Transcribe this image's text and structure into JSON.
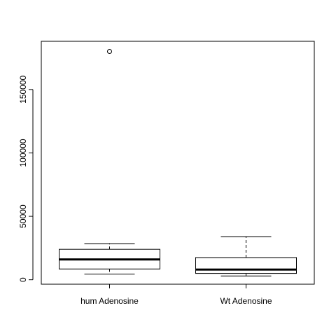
{
  "chart_data": {
    "type": "boxplot",
    "title": "",
    "xlabel": "",
    "ylabel": "",
    "ylim": [
      -3500,
      188000
    ],
    "y_ticks": [
      0,
      50000,
      100000,
      150000
    ],
    "y_tick_labels": [
      "0",
      "50000",
      "100000",
      "150000"
    ],
    "grid": false,
    "legend": "none",
    "categories": [
      "hum Adenosine",
      "Wt Adenosine"
    ],
    "boxes": [
      {
        "category": "hum Adenosine",
        "whisker_low": 4500,
        "q1": 8500,
        "median": 16000,
        "q3": 24000,
        "whisker_high": 28500,
        "outliers": [
          180000
        ]
      },
      {
        "category": "Wt Adenosine",
        "whisker_low": 3000,
        "q1": 5000,
        "median": 8000,
        "q3": 17500,
        "whisker_high": 34000,
        "outliers": []
      }
    ]
  }
}
